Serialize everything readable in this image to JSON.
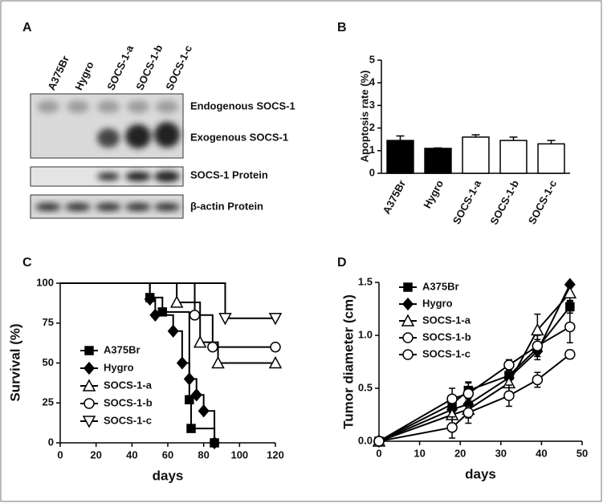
{
  "blot": {
    "label": "A",
    "lanes": [
      "A375Br",
      "Hygro",
      "SOCS-1-a",
      "SOCS-1-b",
      "SOCS-1-c"
    ],
    "bands": [
      "Endogenous SOCS-1",
      "Exogenous SOCS-1",
      "SOCS-1 Protein",
      "β-actin Protein"
    ]
  },
  "chart_data": [
    {
      "type": "bar",
      "label": "B",
      "ylabel": "Apoptosis rate (%)",
      "categories": [
        "A375Br",
        "Hygro",
        "SOCS-1-a",
        "SOCS-1-b",
        "SOCS-1-c"
      ],
      "values": [
        1.45,
        1.1,
        1.6,
        1.45,
        1.3
      ],
      "errors": [
        0.2,
        0.02,
        0.1,
        0.15,
        0.15
      ],
      "colors": [
        "#000000",
        "#000000",
        "#ffffff",
        "#ffffff",
        "#ffffff"
      ],
      "ylim": [
        0,
        5
      ],
      "yticks": [
        0,
        1,
        2,
        3,
        4,
        5
      ]
    },
    {
      "type": "line",
      "label": "C",
      "step": true,
      "xlabel": "days",
      "ylabel": "Survival (%)",
      "xlim": [
        0,
        120
      ],
      "xticks": [
        0,
        20,
        40,
        60,
        80,
        100,
        120
      ],
      "ylim": [
        0,
        100
      ],
      "yticks": [
        0,
        25,
        50,
        75,
        100
      ],
      "series": [
        {
          "name": "A375Br",
          "marker": "square",
          "x": [
            0,
            50,
            57,
            72,
            73,
            86
          ],
          "values": [
            100,
            91,
            82,
            27,
            9,
            0
          ]
        },
        {
          "name": "Hygro",
          "marker": "diamond",
          "x": [
            0,
            50,
            53,
            63,
            68,
            72,
            76,
            80,
            86
          ],
          "values": [
            100,
            90,
            80,
            70,
            50,
            40,
            30,
            20,
            0
          ]
        },
        {
          "name": "SOCS-1-a",
          "marker": "triangle-up",
          "x": [
            0,
            65,
            78,
            88,
            120
          ],
          "values": [
            100,
            88,
            63,
            50,
            50
          ]
        },
        {
          "name": "SOCS-1-b",
          "marker": "circle",
          "x": [
            0,
            75,
            85,
            120
          ],
          "values": [
            100,
            80,
            60,
            60
          ]
        },
        {
          "name": "SOCS-1-c",
          "marker": "triangle-down",
          "x": [
            0,
            92,
            120
          ],
          "values": [
            100,
            78,
            78
          ]
        }
      ]
    },
    {
      "type": "line",
      "label": "D",
      "xlabel": "days",
      "ylabel": "Tumor diameter (cm)",
      "x": [
        0,
        18,
        22,
        32,
        39,
        47
      ],
      "xlim": [
        0,
        50
      ],
      "xticks": [
        0,
        10,
        20,
        30,
        40,
        50
      ],
      "ylim": [
        0,
        1.5
      ],
      "yticks": [
        {
          "value": 0,
          "label": "0.0"
        },
        0.5,
        {
          "value": 1,
          "label": "1.0"
        },
        1.5
      ],
      "series": [
        {
          "name": "A375Br",
          "marker": "square",
          "values": [
            0,
            0.35,
            0.48,
            0.62,
            0.88,
            1.27
          ],
          "errors": [
            0,
            0.08,
            0.08,
            0.08,
            0.08,
            0.06
          ]
        },
        {
          "name": "Hygro",
          "marker": "diamond",
          "values": [
            0,
            0.3,
            0.35,
            0.6,
            0.85,
            1.48
          ],
          "errors": [
            0,
            0.08,
            0.08,
            0.08,
            0.08,
            0.02
          ]
        },
        {
          "name": "SOCS-1-a",
          "marker": "triangle-up",
          "values": [
            0,
            0.25,
            0.3,
            0.55,
            1.05,
            1.4
          ],
          "errors": [
            0,
            0.08,
            0.08,
            0.08,
            0.15,
            0.08
          ]
        },
        {
          "name": "SOCS-1-b",
          "marker": "circle",
          "values": [
            0,
            0.4,
            0.45,
            0.72,
            0.9,
            1.08
          ],
          "errors": [
            0,
            0.1,
            0.1,
            0.05,
            0.1,
            0.15
          ]
        },
        {
          "name": "SOCS-1-c",
          "marker": "circle",
          "values": [
            0,
            0.13,
            0.27,
            0.43,
            0.58,
            0.82
          ],
          "errors": [
            0,
            0.1,
            0.1,
            0.1,
            0.07,
            0.04
          ]
        }
      ]
    }
  ]
}
